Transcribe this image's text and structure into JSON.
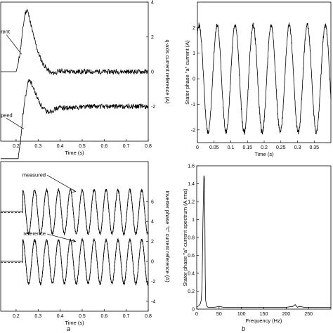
{
  "chart_data": [
    {
      "id": "tl",
      "type": "line",
      "xlabel": "Time (s)",
      "ylabel_right": "q-axis current reference (A)",
      "xlim": [
        0.13,
        0.8
      ],
      "ylim": [
        -4,
        4
      ],
      "xticks": [
        0.2,
        0.3,
        0.4,
        0.5,
        0.6,
        0.7,
        0.8
      ],
      "yticks_right": [
        4,
        2,
        0,
        -2
      ],
      "annotations": [
        {
          "text": "rent",
          "x": 0.15,
          "y": 2.2
        },
        {
          "text": "peed",
          "x": 0.15,
          "y": -2.6
        }
      ],
      "series": [
        {
          "name": "current",
          "x": [
            0.13,
            0.19,
            0.2,
            0.21,
            0.22,
            0.23,
            0.24,
            0.25,
            0.26,
            0.28,
            0.3,
            0.32,
            0.34,
            0.36,
            0.38,
            0.4,
            0.45,
            0.5,
            0.6,
            0.7,
            0.8
          ],
          "values": [
            0.0,
            0.0,
            0.0,
            0.5,
            1.3,
            2.4,
            3.3,
            3.6,
            3.1,
            2.0,
            1.1,
            0.5,
            0.15,
            -0.1,
            -0.05,
            0.05,
            0.0,
            0.0,
            0.0,
            0.0,
            0.0
          ]
        },
        {
          "name": "speed",
          "x": [
            0.13,
            0.2,
            0.21,
            0.22,
            0.23,
            0.24,
            0.25,
            0.26,
            0.28,
            0.3,
            0.32,
            0.34,
            0.36,
            0.4,
            0.45,
            0.5,
            0.6,
            0.7,
            0.8
          ],
          "values": [
            -5.0,
            -5.0,
            -5.0,
            -4.0,
            -2.6,
            -1.6,
            -0.9,
            -0.4,
            -1.0,
            -1.6,
            -2.1,
            -2.3,
            -2.25,
            -2.05,
            -2.1,
            -2.0,
            -2.0,
            -2.0,
            -2.0
          ]
        }
      ]
    },
    {
      "id": "tr",
      "type": "line",
      "xlabel": "Time (s)",
      "ylabel": "Stator phase \"a\" current (A)",
      "xlim": [
        0,
        0.4
      ],
      "ylim": [
        -2.5,
        3
      ],
      "xticks": [
        0,
        0.05,
        0.1,
        0.15,
        0.2,
        0.25,
        0.3,
        0.35
      ],
      "ytick_labels": [
        "2",
        "1",
        "0",
        "-1",
        "-2"
      ],
      "wave": {
        "amplitude": 2.1,
        "frequency_hz": 18.5,
        "phase_rad": 1.0
      }
    },
    {
      "id": "bl",
      "type": "line",
      "xlabel": "Time (s)",
      "ylabel_right": "Inverter phase \"c\" current reference (A)",
      "xlim": [
        0.13,
        0.8
      ],
      "ylim": [
        -5,
        10
      ],
      "xticks": [
        0.2,
        0.3,
        0.4,
        0.5,
        0.6,
        0.7,
        0.8
      ],
      "yticks_right": [
        6,
        4,
        2,
        0,
        -2,
        -4
      ],
      "annotations": [
        {
          "text": "measured",
          "x": 0.36,
          "y": 8.5
        },
        {
          "text": "reference",
          "x": 0.36,
          "y": 2.6
        }
      ],
      "series": [
        {
          "name": "measured",
          "offset": 5.0,
          "amplitude": 2.2,
          "frequency_hz": 18.5,
          "start_s": 0.23
        },
        {
          "name": "reference",
          "offset": 0.0,
          "amplitude": 2.2,
          "frequency_hz": 18.5,
          "start_s": 0.23
        }
      ]
    },
    {
      "id": "br",
      "type": "line",
      "xlabel": "Frequency (Hz)",
      "ylabel": "Stator phase \"a\" current spectrum (A rms)",
      "xlim": [
        0,
        300
      ],
      "ylim": [
        0,
        1.6
      ],
      "xticks": [
        0,
        50,
        100,
        150,
        200,
        250
      ],
      "yticks": [
        1.6,
        1.4,
        1.2,
        1,
        0.8,
        0.6,
        0.4,
        0.2,
        0
      ],
      "x": [
        0,
        5,
        8,
        10,
        12,
        14,
        16,
        17,
        18,
        19,
        20,
        22,
        25,
        30,
        40,
        50,
        60,
        80,
        100,
        120,
        150,
        180,
        200,
        215,
        220,
        225,
        230,
        240,
        260,
        280,
        300
      ],
      "values": [
        0.02,
        0.04,
        0.06,
        0.1,
        0.25,
        1.0,
        1.49,
        1.47,
        1.2,
        0.4,
        0.1,
        0.04,
        0.02,
        0.02,
        0.02,
        0.03,
        0.02,
        0.02,
        0.02,
        0.02,
        0.02,
        0.02,
        0.02,
        0.03,
        0.05,
        0.02,
        0.03,
        0.02,
        0.02,
        0.02,
        0.02
      ]
    }
  ],
  "panel_labels": {
    "a": "a",
    "b": "b"
  }
}
